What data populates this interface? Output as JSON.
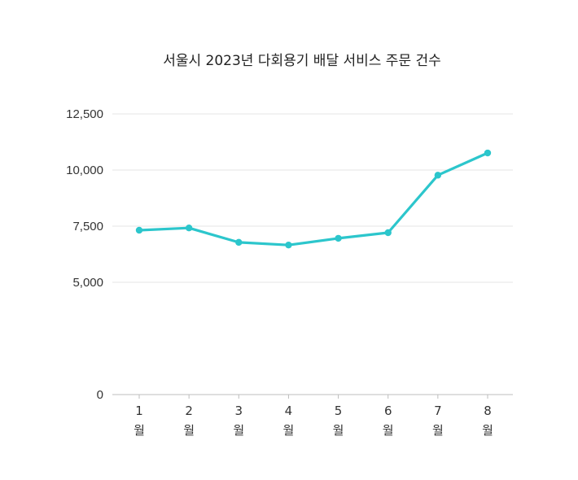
{
  "chart_data": {
    "type": "line",
    "title": "서울시 2023년 다회용기 배달 서비스 주문 건수",
    "xlabel": "",
    "ylabel": "",
    "categories": [
      "1월",
      "2월",
      "3월",
      "4월",
      "5월",
      "6월",
      "7월",
      "8월"
    ],
    "category_lines": [
      [
        "1",
        "월"
      ],
      [
        "2",
        "월"
      ],
      [
        "3",
        "월"
      ],
      [
        "4",
        "월"
      ],
      [
        "5",
        "월"
      ],
      [
        "6",
        "월"
      ],
      [
        "7",
        "월"
      ],
      [
        "8",
        "월"
      ]
    ],
    "series": [
      {
        "values": [
          7320,
          7420,
          6780,
          6660,
          6960,
          7210,
          9770,
          10760
        ],
        "color": "#2cc6cc"
      }
    ],
    "ylim": [
      0,
      12500
    ],
    "yticks": [
      0,
      5000,
      7500,
      10000,
      12500
    ],
    "ytick_labels": [
      "0",
      "5,000",
      "7,500",
      "10,000",
      "12,500"
    ],
    "grid": true,
    "legend": "none"
  }
}
